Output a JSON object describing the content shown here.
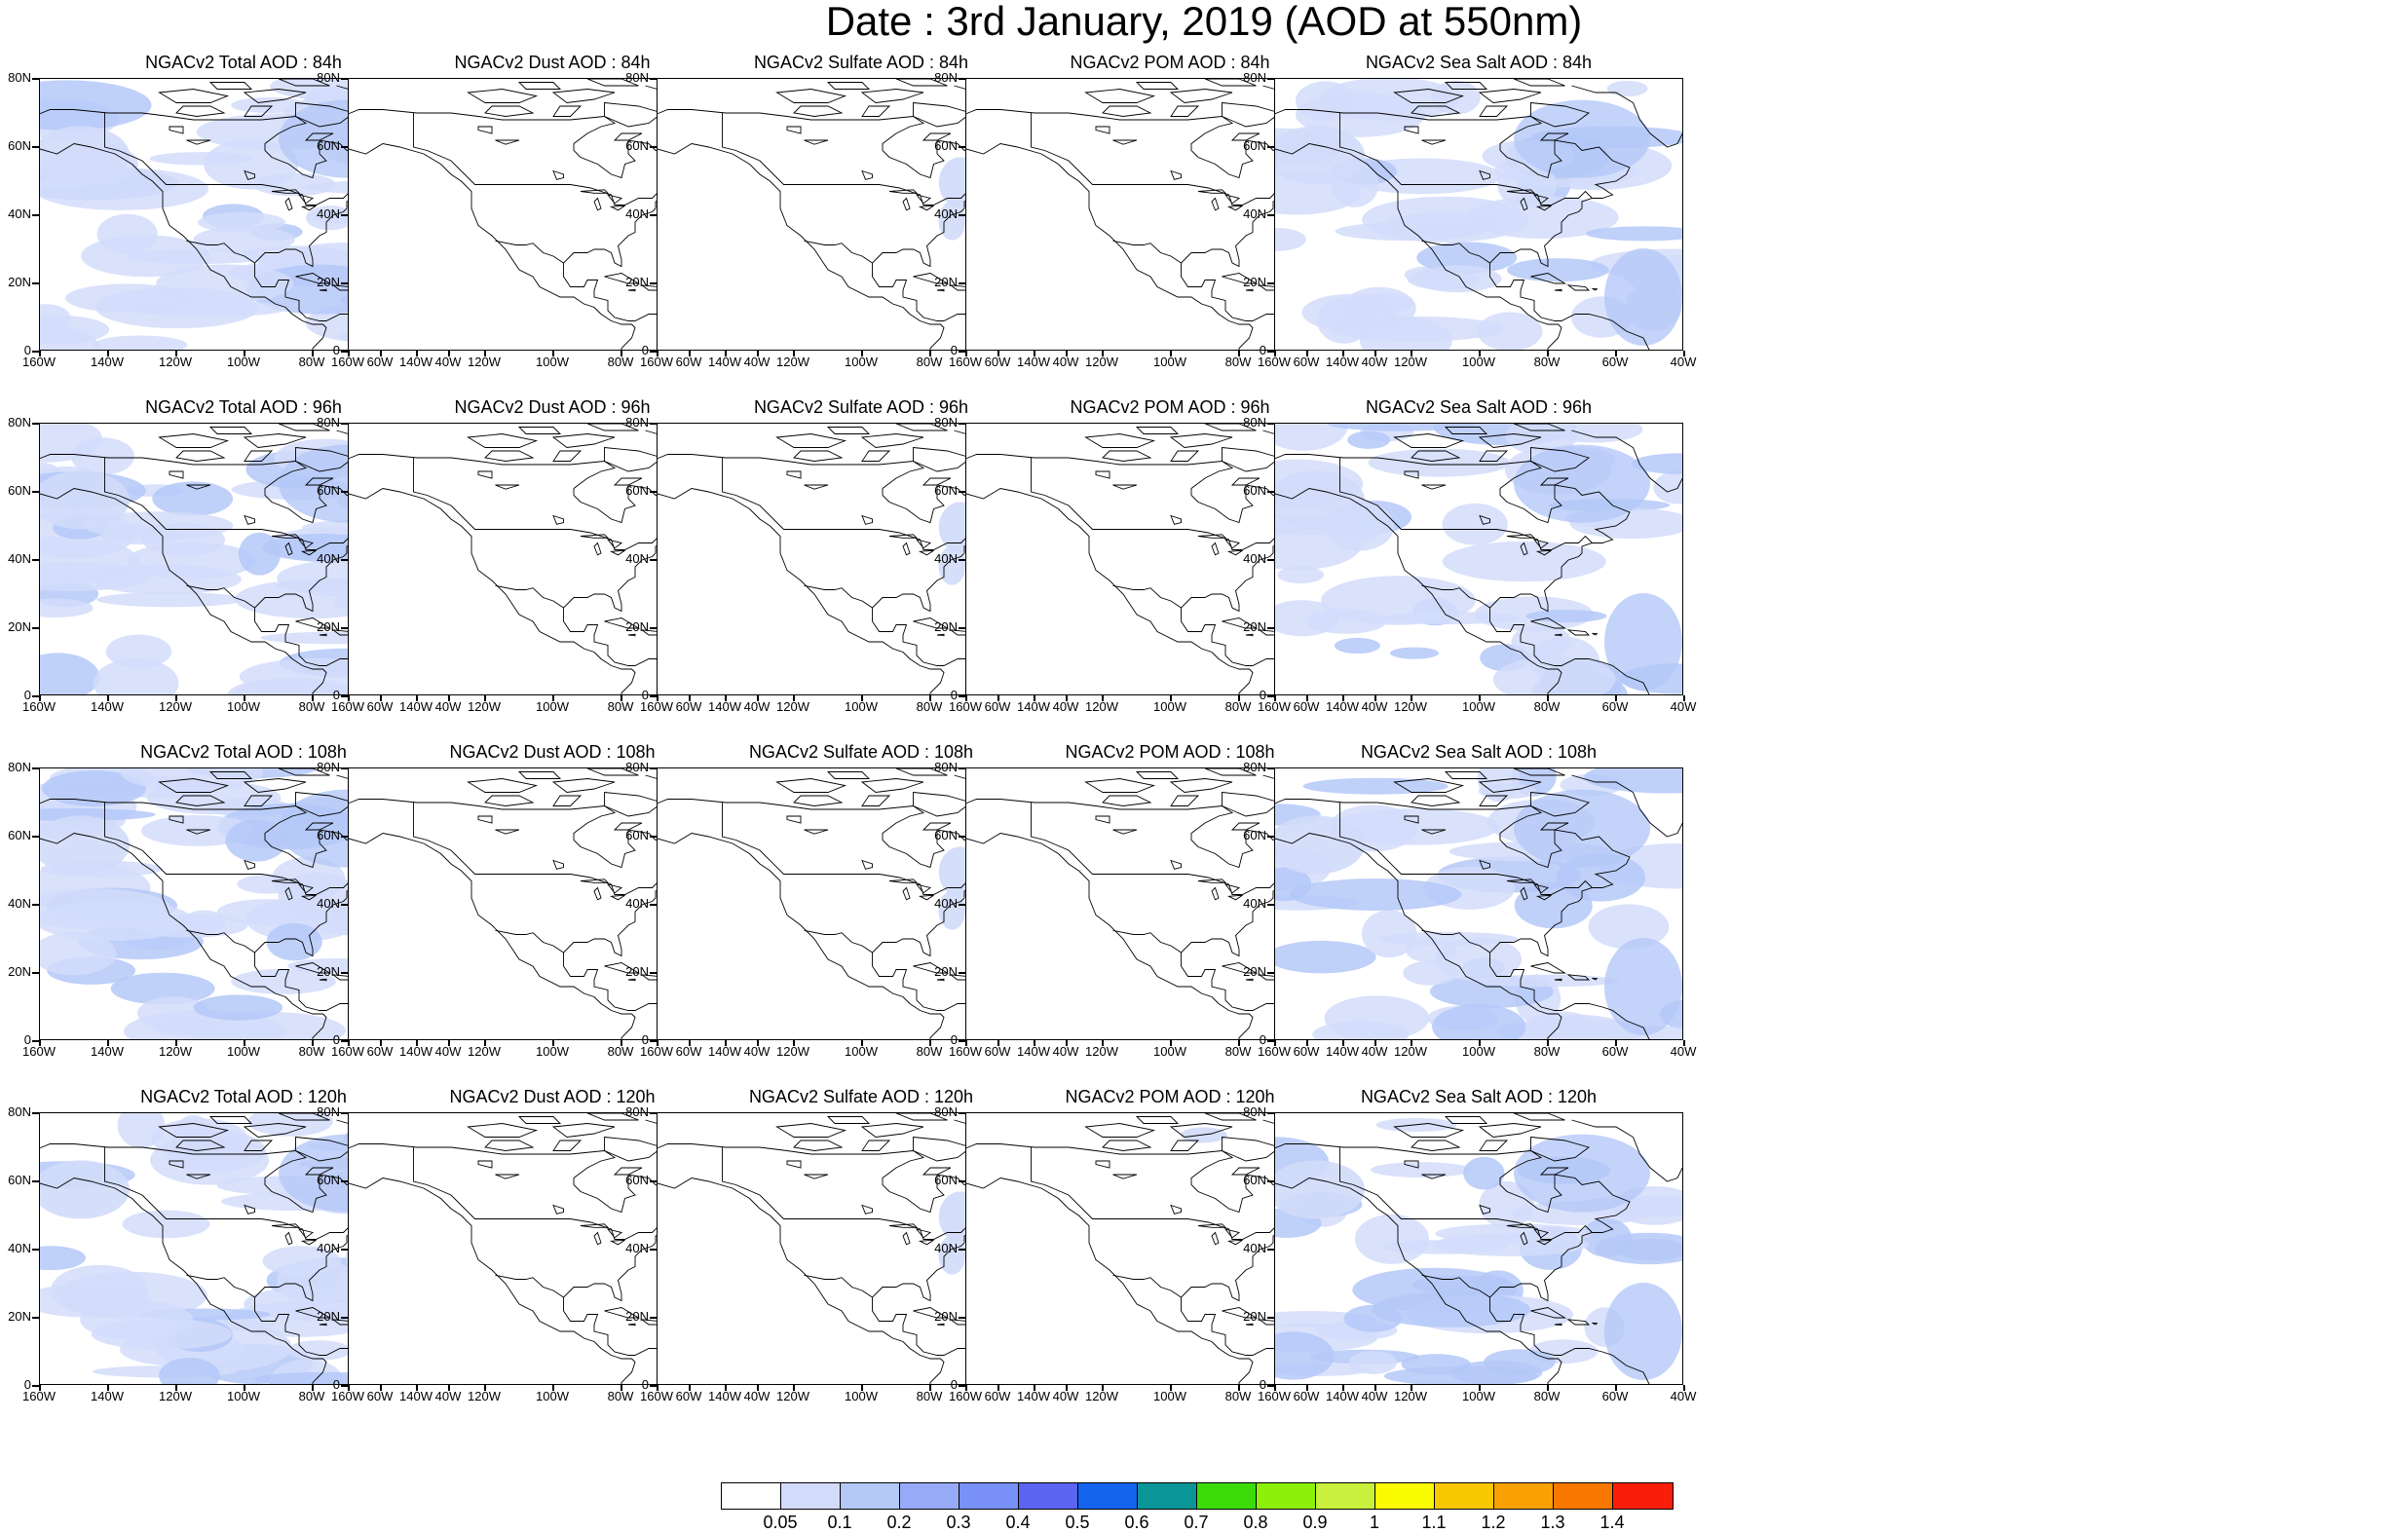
{
  "title": "Date : 3rd January, 2019 (AOD at 550nm)",
  "lat_labels": [
    "80N",
    "60N",
    "40N",
    "20N",
    "0"
  ],
  "lon_labels": [
    "160W",
    "140W",
    "120W",
    "100W",
    "80W",
    "60W",
    "40W"
  ],
  "panel_titles": [
    [
      "NGACv2 Total AOD : 84h",
      "NGACv2 Dust AOD : 84h",
      "NGACv2 Sulfate AOD : 84h",
      "NGACv2 POM AOD : 84h",
      "NGACv2 Sea Salt AOD : 84h"
    ],
    [
      "NGACv2 Total AOD : 96h",
      "NGACv2 Dust AOD : 96h",
      "NGACv2 Sulfate AOD : 96h",
      "NGACv2 POM AOD : 96h",
      "NGACv2 Sea Salt AOD : 96h"
    ],
    [
      "NGACv2 Total AOD : 108h",
      "NGACv2 Dust AOD : 108h",
      "NGACv2 Sulfate AOD : 108h",
      "NGACv2 POM AOD : 108h",
      "NGACv2 Sea Salt AOD : 108h"
    ],
    [
      "NGACv2 Total AOD : 120h",
      "NGACv2 Dust AOD : 120h",
      "NGACv2 Sulfate AOD : 120h",
      "NGACv2 POM AOD : 120h",
      "NGACv2 Sea Salt  AOD : 120h"
    ]
  ],
  "colorbar": {
    "labels": [
      "0.05",
      "0.1",
      "0.2",
      "0.3",
      "0.4",
      "0.5",
      "0.6",
      "0.7",
      "0.8",
      "0.9",
      "1",
      "1.1",
      "1.2",
      "1.3",
      "1.4"
    ],
    "colors": [
      "#ffffff",
      "#d2dcfa",
      "#b4c8f8",
      "#96aaf8",
      "#7890f8",
      "#5a64f0",
      "#1464f0",
      "#0a9696",
      "#3cdc0a",
      "#8cf00a",
      "#c8f03c",
      "#fafa00",
      "#fac800",
      "#faa000",
      "#fa7800",
      "#fa1e0a"
    ]
  },
  "field_colors": {
    "light": "#d2dcfa",
    "medium": "#b4c8f8"
  }
}
